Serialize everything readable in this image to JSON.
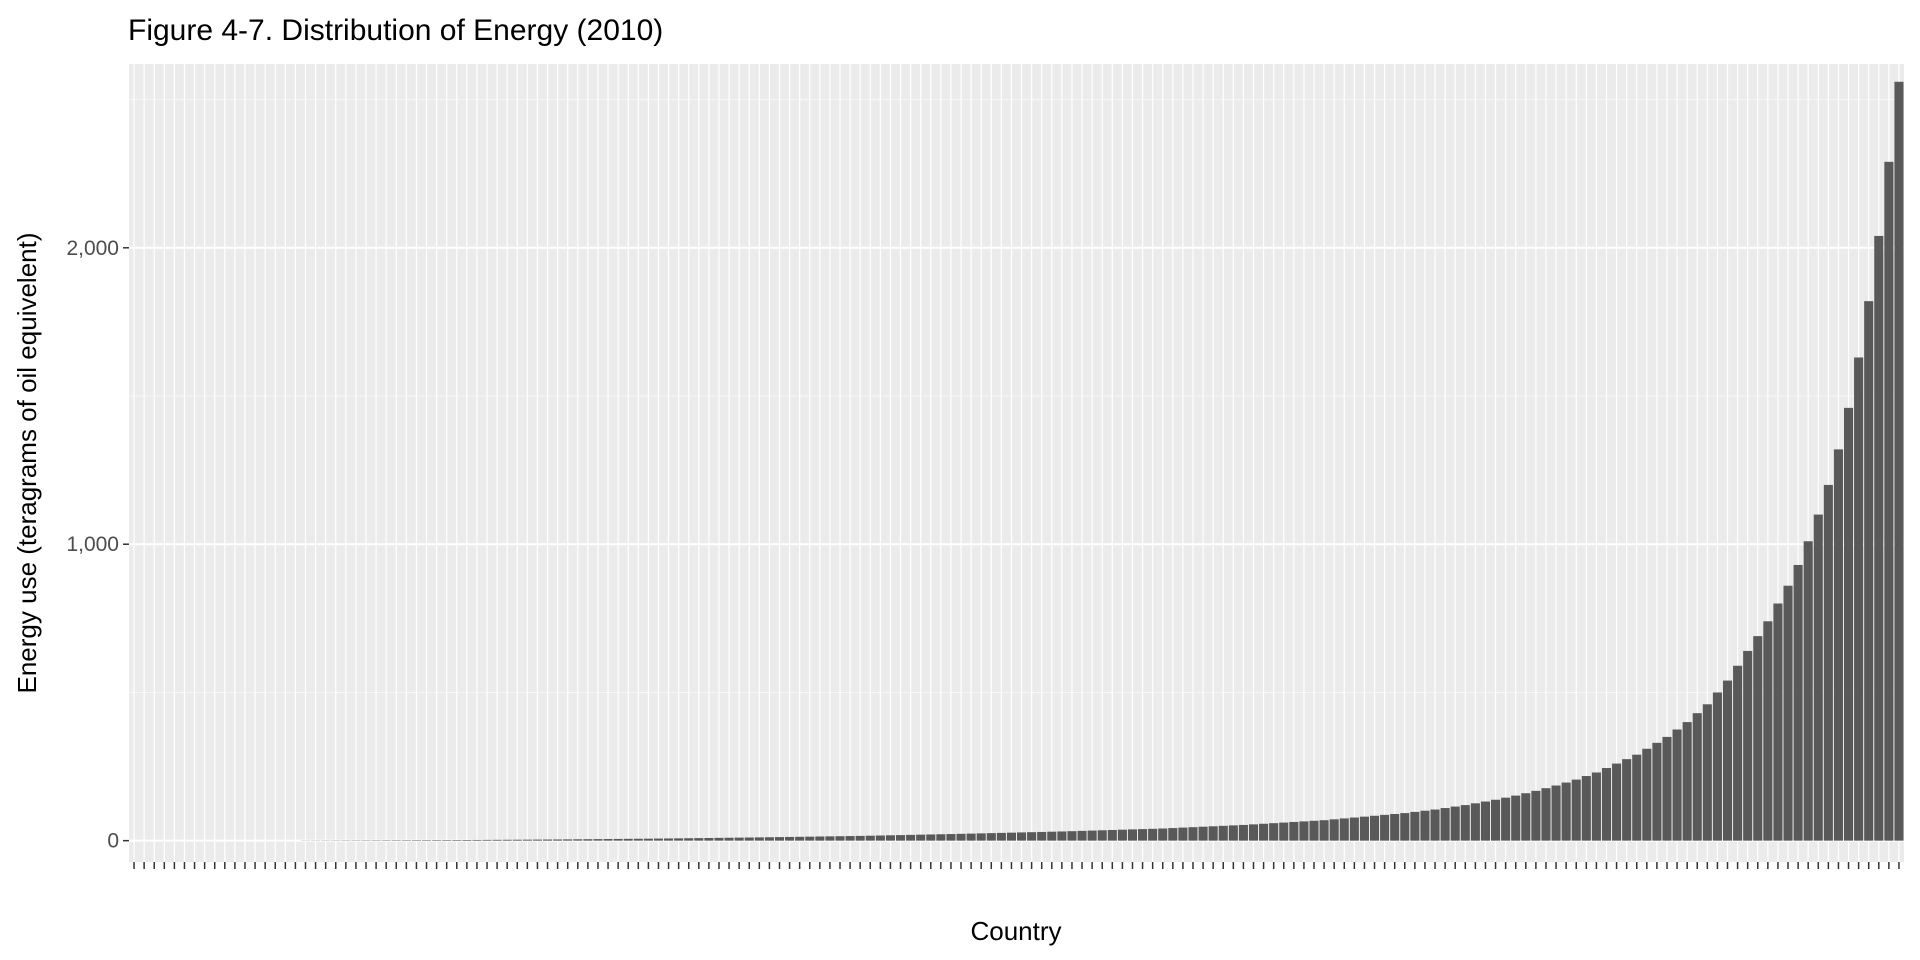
{
  "chart_data": {
    "type": "bar",
    "title": "Figure 4-7. Distribution of Energy (2010)",
    "xlabel": "Country",
    "ylabel": "Energy use (teragrams of oil equivelent)",
    "ylim": [
      -72,
      2620
    ],
    "yticks": [
      0,
      1000,
      2000
    ],
    "ytick_labels": [
      "0",
      "1,000",
      "2,000"
    ],
    "grid": true,
    "legend": "none",
    "x_tick_labels_shown": false,
    "n_categories": 176,
    "values": [
      0,
      0,
      0,
      0,
      0,
      0,
      0,
      0,
      0,
      0,
      0,
      0,
      0,
      0,
      0,
      0,
      0,
      0.5,
      0.6,
      0.7,
      0.8,
      0.9,
      1.0,
      1.1,
      1.2,
      1.3,
      1.4,
      1.5,
      1.6,
      1.7,
      1.8,
      1.9,
      2.0,
      2.2,
      2.4,
      2.6,
      2.8,
      3.0,
      3.2,
      3.4,
      3.6,
      3.8,
      4.0,
      4.3,
      4.6,
      4.9,
      5.2,
      5.5,
      5.8,
      6.1,
      6.4,
      6.7,
      7.0,
      7.4,
      7.8,
      8.2,
      8.6,
      9.0,
      9.4,
      9.8,
      10.2,
      10.6,
      11.0,
      11.5,
      12.0,
      12.5,
      13.0,
      13.5,
      14.0,
      14.5,
      15.0,
      15.5,
      16.0,
      16.7,
      17.4,
      18.1,
      18.8,
      19.5,
      20.2,
      20.9,
      21.6,
      22.3,
      23.0,
      23.8,
      24.6,
      25.4,
      26.2,
      27.0,
      27.8,
      28.6,
      29.4,
      30.2,
      31.0,
      32.0,
      33.0,
      34.0,
      35.0,
      36.0,
      37.0,
      38.0,
      39.0,
      40.0,
      41.0,
      42.5,
      44.0,
      45.5,
      47.0,
      48.5,
      50.0,
      51.5,
      53.0,
      55.0,
      57.0,
      59.0,
      61.0,
      63.0,
      65.0,
      67.0,
      69.0,
      72.0,
      75.0,
      78.0,
      81.0,
      84.0,
      87.0,
      90.0,
      93.0,
      97.0,
      101.0,
      105.0,
      110.0,
      115.0,
      120.0,
      126.0,
      132.0,
      138.0,
      145.0,
      152.0,
      160.0,
      168.0,
      177.0,
      186.0,
      196.0,
      206.0,
      218.0,
      230.0,
      245.0,
      260.0,
      275.0,
      290.0,
      310.0,
      330.0,
      350.0,
      375.0,
      400.0,
      430.0,
      460.0,
      500.0,
      540.0,
      590.0,
      640.0,
      690.0,
      740.0,
      800.0,
      860.0,
      930.0,
      1010.0,
      1100.0,
      1200.0,
      1320.0,
      1460.0,
      1630.0,
      1820.0,
      2040.0,
      2290.0,
      2560.0
    ]
  }
}
